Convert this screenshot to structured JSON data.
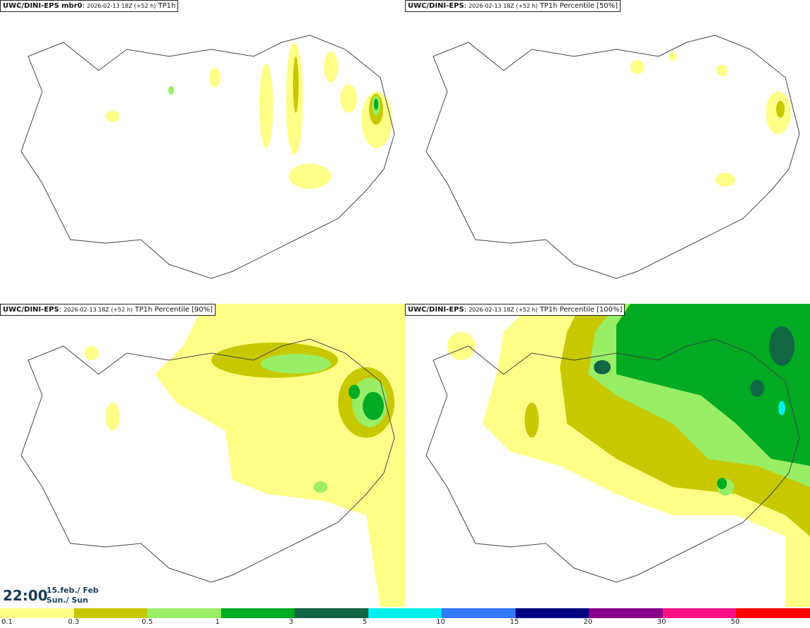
{
  "panels": [
    {
      "model": "UWC/DINI-EPS mbr0",
      "run": "2026-02-13 18Z (+52 h)",
      "field": "TP1h"
    },
    {
      "model": "UWC/DINI-EPS",
      "run": "2026-02-13 18Z (+52 h)",
      "field": "TP1h Percentile [50%]"
    },
    {
      "model": "UWC/DINI-EPS",
      "run": "2026-02-13 18Z (+52 h)",
      "field": "TP1h Percentile [90%]"
    },
    {
      "model": "UWC/DINI-EPS",
      "run": "2026-02-13 18Z (+52 h)",
      "field": "TP1h Percentile [100%]"
    }
  ],
  "valid_time": {
    "time": "22:00",
    "date": "15.feb./ Feb",
    "day": "Sun./ Sun"
  },
  "legend": {
    "labels": [
      "0.1",
      "0.3",
      "0.5",
      "1",
      "3",
      "5",
      "10",
      "15",
      "20",
      "30",
      "50"
    ],
    "colors": [
      "#ffff88",
      "#c8c800",
      "#99ee66",
      "#00aa22",
      "#116644",
      "#00eeee",
      "#3377ff",
      "#000080",
      "#880088",
      "#ff1188",
      "#ff0000"
    ]
  }
}
